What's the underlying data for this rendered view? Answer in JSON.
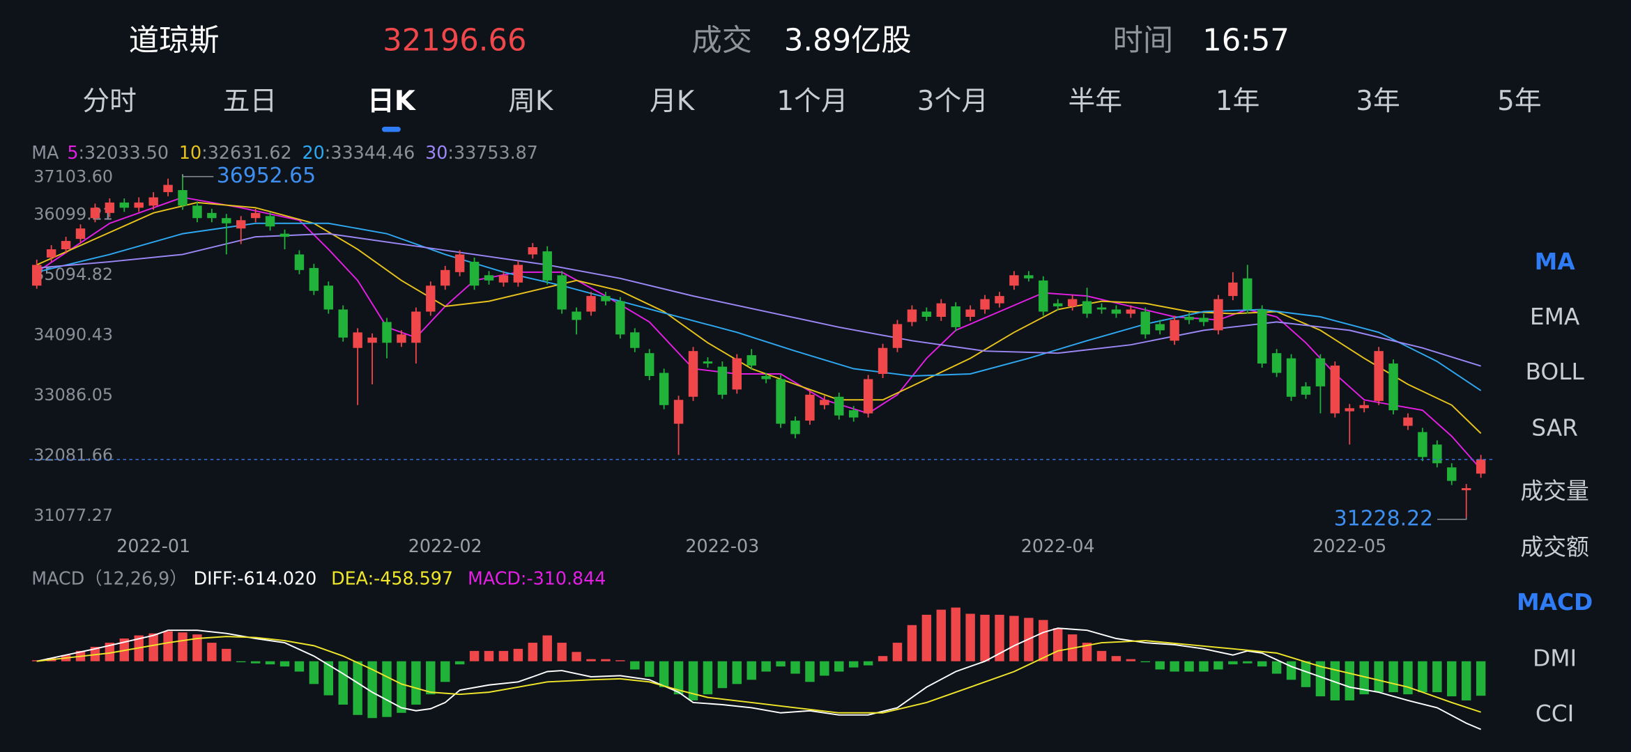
{
  "header": {
    "name": "道琼斯",
    "price": "32196.66",
    "volume_label": "成交",
    "volume": "3.89亿股",
    "time_label": "时间",
    "time": "16:57"
  },
  "tabs": {
    "items": [
      "分时",
      "五日",
      "日K",
      "周K",
      "月K",
      "1个月",
      "3个月",
      "半年",
      "1年",
      "3年",
      "5年"
    ],
    "active": 2
  },
  "side_menu": {
    "items": [
      "MA",
      "EMA",
      "BOLL",
      "SAR",
      "成交量",
      "成交额",
      "MACD",
      "DMI",
      "CCI"
    ],
    "active": [
      0,
      6
    ]
  },
  "chart_data": [
    {
      "type": "candlestick",
      "legend_title": "MA",
      "up_color": "#f0474a",
      "down_color": "#21b23a",
      "xlim": [
        -0.5,
        100.5
      ],
      "ylim": [
        30990,
        37260
      ],
      "yticks": [
        {
          "value": 37103.6,
          "label": "37103.60"
        },
        36099.21,
        35094.82,
        34090.43,
        33086.05,
        32081.66,
        31077.27
      ],
      "xticks": [
        {
          "value": 8,
          "label": "2022-01"
        },
        {
          "value": 28,
          "label": "2022-02"
        },
        {
          "value": 47,
          "label": "2022-03"
        },
        {
          "value": 70,
          "label": "2022-04"
        },
        {
          "value": 90,
          "label": "2022-05"
        }
      ],
      "open": [
        35095,
        35563,
        35701,
        35874,
        36221,
        36307,
        36481,
        36394,
        36429,
        36654,
        36688,
        36429,
        36307,
        36221,
        36048,
        36221,
        36255,
        35961,
        35615,
        35389,
        35095,
        34697,
        34056,
        34142,
        34489,
        34142,
        34142,
        34662,
        35095,
        35320,
        35493,
        35268,
        35147,
        35147,
        35615,
        35667,
        35268,
        34662,
        34662,
        34922,
        34835,
        34316,
        33969,
        33640,
        32792,
        33242,
        33831,
        33744,
        33363,
        33935,
        33588,
        33536,
        32844,
        32844,
        33103,
        33242,
        33017,
        32965,
        33623,
        34056,
        34489,
        34662,
        34575,
        34749,
        34575,
        34697,
        34800,
        35095,
        35268,
        35181,
        34800,
        34749,
        34835,
        34731,
        34697,
        34627,
        34662,
        34454,
        34177,
        34575,
        34558,
        34350,
        34922,
        35216,
        34697,
        33969,
        33883,
        33415,
        33883,
        32965,
        33000,
        33051,
        33172,
        33796,
        32757,
        32653,
        32445,
        32064,
        31683,
        31960
      ],
      "close": [
        35441,
        35701,
        35840,
        36048,
        36394,
        36481,
        36394,
        36481,
        36567,
        36775,
        36429,
        36221,
        36221,
        36134,
        36186,
        36307,
        36082,
        35909,
        35355,
        35008,
        34697,
        34229,
        34315,
        34229,
        34142,
        34281,
        34662,
        35095,
        35355,
        35615,
        35095,
        35181,
        35268,
        35441,
        35736,
        35181,
        34697,
        34523,
        34922,
        34835,
        34281,
        34056,
        33588,
        33103,
        33190,
        34004,
        33796,
        33276,
        33883,
        33762,
        33536,
        32792,
        32619,
        33276,
        33190,
        32930,
        32896,
        33536,
        34056,
        34454,
        34697,
        34575,
        34800,
        34402,
        34697,
        34870,
        34922,
        35268,
        35216,
        34662,
        34749,
        34870,
        34627,
        34697,
        34627,
        34697,
        34281,
        34350,
        34523,
        34523,
        34489,
        34870,
        35147,
        34697,
        33796,
        33640,
        33242,
        33276,
        33415,
        33762,
        33051,
        33103,
        34004,
        33017,
        32896,
        32237,
        32133,
        31839,
        31718,
        32196.66
      ],
      "high": [
        35528,
        35770,
        35909,
        36117,
        36463,
        36550,
        36550,
        36567,
        36654,
        36879,
        36952.65,
        36498,
        36377,
        36290,
        36255,
        36377,
        36325,
        36030,
        35684,
        35459,
        35164,
        34766,
        34385,
        34298,
        34558,
        34350,
        34731,
        35164,
        35424,
        35684,
        35563,
        35338,
        35338,
        35511,
        35805,
        35753,
        35338,
        34731,
        34991,
        34991,
        34904,
        34385,
        34038,
        33710,
        33259,
        34073,
        33900,
        33831,
        33952,
        34038,
        33640,
        33605,
        32913,
        33346,
        33259,
        33311,
        33086,
        33605,
        34125,
        34523,
        34766,
        34731,
        34870,
        34818,
        34766,
        34939,
        34991,
        35338,
        35338,
        35251,
        34870,
        34939,
        35060,
        34800,
        34766,
        34766,
        34731,
        34523,
        34593,
        34644,
        34627,
        34939,
        35320,
        35441,
        34766,
        34038,
        33952,
        33485,
        33952,
        33831,
        33121,
        33172,
        34073,
        33865,
        32965,
        32723,
        32515,
        32133,
        31787,
        32272
      ],
      "low": [
        35043,
        35493,
        35632,
        35805,
        36152,
        36238,
        36325,
        36325,
        36359,
        36585,
        36359,
        36152,
        36152,
        35615,
        35788,
        36152,
        36013,
        35701,
        35286,
        34939,
        34627,
        34160,
        33103,
        33449,
        33883,
        34073,
        33796,
        34593,
        35026,
        35251,
        35026,
        35112,
        35078,
        35078,
        35546,
        35112,
        34627,
        34281,
        34593,
        34766,
        34212,
        33986,
        33519,
        33034,
        32272,
        33172,
        33727,
        33207,
        33294,
        33692,
        33467,
        32723,
        32549,
        32775,
        33034,
        32861,
        32827,
        32896,
        33554,
        33986,
        34419,
        34506,
        34506,
        34333,
        34506,
        34627,
        34731,
        35026,
        35164,
        34593,
        34679,
        34679,
        34558,
        34627,
        34558,
        34558,
        34212,
        34281,
        34108,
        34454,
        34419,
        34281,
        34852,
        34627,
        33727,
        33571,
        33172,
        33207,
        32965,
        32896,
        32445,
        32982,
        33103,
        32948,
        32688,
        32168,
        32064,
        31770,
        31228.22,
        31891
      ],
      "series": [
        {
          "name": "5",
          "label": ":32033.50",
          "color": "#e41fe4",
          "x": [
            0,
            5,
            10,
            14,
            18,
            20,
            22,
            24,
            26,
            28,
            30,
            33,
            36,
            39,
            42,
            45,
            48,
            51,
            54,
            57,
            59,
            61,
            63,
            66,
            69,
            72,
            75,
            78,
            81,
            83,
            85,
            87,
            89,
            91,
            93,
            95,
            97,
            99
          ],
          "values": [
            35320,
            36134,
            36567,
            36394,
            36186,
            35701,
            35181,
            34402,
            34229,
            34749,
            35181,
            35320,
            35320,
            34922,
            34489,
            33710,
            33623,
            33623,
            33190,
            32965,
            33276,
            33883,
            34350,
            34662,
            34974,
            34922,
            34749,
            34575,
            34523,
            34697,
            34575,
            34142,
            33623,
            33190,
            33103,
            33017,
            32584,
            32033.5
          ]
        },
        {
          "name": "10",
          "label": ":32631.62",
          "color": "#e8c31b",
          "x": [
            0,
            4,
            8,
            11,
            15,
            19,
            22,
            25,
            28,
            31,
            34,
            37,
            40,
            43,
            46,
            49,
            52,
            55,
            58,
            61,
            64,
            67,
            70,
            73,
            76,
            79,
            82,
            85,
            88,
            91,
            94,
            97,
            99
          ],
          "values": [
            35441,
            35874,
            36307,
            36481,
            36394,
            36134,
            35701,
            35181,
            34749,
            34835,
            35008,
            35181,
            35008,
            34662,
            34142,
            33710,
            33449,
            33190,
            33190,
            33536,
            33883,
            34316,
            34697,
            34835,
            34800,
            34662,
            34627,
            34662,
            34350,
            33883,
            33449,
            33103,
            32631.62
          ]
        },
        {
          "name": "20",
          "label": ":33344.46",
          "color": "#2ea8f0",
          "x": [
            0,
            5,
            10,
            15,
            20,
            24,
            28,
            32,
            36,
            40,
            44,
            48,
            52,
            56,
            60,
            64,
            68,
            72,
            76,
            80,
            84,
            88,
            92,
            96,
            99
          ],
          "values": [
            35320,
            35615,
            35961,
            36134,
            36134,
            35961,
            35615,
            35320,
            35095,
            34835,
            34575,
            34316,
            34004,
            33710,
            33588,
            33623,
            33883,
            34177,
            34454,
            34662,
            34697,
            34575,
            34316,
            33831,
            33344.46
          ]
        },
        {
          "name": "30",
          "label": ":33753.87",
          "color": "#9b88f6",
          "x": [
            0,
            5,
            10,
            15,
            20,
            25,
            30,
            35,
            40,
            45,
            50,
            55,
            60,
            65,
            70,
            75,
            80,
            85,
            90,
            95,
            99
          ],
          "values": [
            35389,
            35493,
            35615,
            35909,
            35961,
            35788,
            35615,
            35441,
            35216,
            34922,
            34662,
            34402,
            34177,
            34004,
            33969,
            34108,
            34350,
            34489,
            34350,
            34056,
            33753.87
          ]
        }
      ]
    },
    {
      "type": "macd",
      "title": "MACD（12,26,9）",
      "xlim": [
        -0.5,
        100.5
      ],
      "ylim": [
        -640,
        577
      ],
      "series": [
        {
          "name": "DIFF:-614.020",
          "color": "#ffffff",
          "x": [
            0,
            4,
            8,
            9,
            11,
            13,
            15,
            17,
            19,
            21,
            23,
            25,
            26,
            27,
            28,
            29,
            31,
            33,
            34,
            35,
            36,
            38,
            40,
            42,
            44,
            45,
            47,
            49,
            51,
            53,
            55,
            57,
            59,
            61,
            63,
            65,
            67,
            69,
            70,
            72,
            74,
            76,
            78,
            80,
            82,
            83,
            84,
            86,
            88,
            90,
            92,
            94,
            96,
            98,
            99
          ],
          "values": [
            0,
            112,
            233,
            279,
            279,
            251,
            205,
            167,
            47,
            -112,
            -279,
            -419,
            -446,
            -428,
            -372,
            -260,
            -214,
            -186,
            -140,
            -93,
            -84,
            -140,
            -130,
            -167,
            -279,
            -372,
            -391,
            -419,
            -465,
            -446,
            -484,
            -484,
            -419,
            -233,
            -93,
            0,
            140,
            260,
            298,
            279,
            205,
            167,
            149,
            112,
            56,
            93,
            74,
            -47,
            -140,
            -233,
            -279,
            -353,
            -419,
            -558,
            -614.02
          ]
        },
        {
          "name": "DEA:-458.597",
          "color": "#f0e62a",
          "x": [
            0,
            5,
            9,
            11,
            13,
            15,
            17,
            19,
            21,
            23,
            25,
            27,
            29,
            31,
            33,
            35,
            38,
            40,
            42,
            44,
            46,
            49,
            52,
            55,
            58,
            61,
            64,
            67,
            70,
            73,
            76,
            79,
            82,
            85,
            88,
            91,
            94,
            97,
            99
          ],
          "values": [
            0,
            74,
            167,
            205,
            223,
            214,
            186,
            140,
            47,
            -74,
            -205,
            -279,
            -298,
            -279,
            -233,
            -186,
            -167,
            -158,
            -186,
            -260,
            -326,
            -372,
            -419,
            -465,
            -465,
            -372,
            -233,
            -93,
            93,
            167,
            186,
            149,
            112,
            74,
            -47,
            -140,
            -233,
            -372,
            -458.597
          ]
        },
        {
          "name": "MACD:-310.844",
          "color": "#e41fe4",
          "kind": "bar",
          "up_color": "#f0474a",
          "down_color": "#21b23a",
          "values": [
            9,
            28,
            56,
            93,
            130,
            167,
            205,
            233,
            251,
            270,
            260,
            242,
            167,
            112,
            -9,
            -19,
            -28,
            -47,
            -93,
            -205,
            -307,
            -391,
            -484,
            -512,
            -502,
            -465,
            -391,
            -298,
            -186,
            -28,
            93,
            93,
            93,
            112,
            167,
            233,
            167,
            84,
            19,
            19,
            9,
            -74,
            -140,
            -233,
            -298,
            -353,
            -298,
            -242,
            -205,
            -167,
            -93,
            -47,
            -112,
            -186,
            -130,
            -93,
            -56,
            -37,
            47,
            167,
            326,
            419,
            465,
            484,
            428,
            419,
            419,
            409,
            391,
            372,
            298,
            242,
            167,
            93,
            47,
            19,
            -9,
            -74,
            -93,
            -93,
            -93,
            -74,
            -28,
            -19,
            -47,
            -112,
            -167,
            -233,
            -316,
            -353,
            -353,
            -298,
            -279,
            -279,
            -298,
            -279,
            -279,
            -316,
            -353,
            -310.844
          ]
        }
      ]
    }
  ]
}
